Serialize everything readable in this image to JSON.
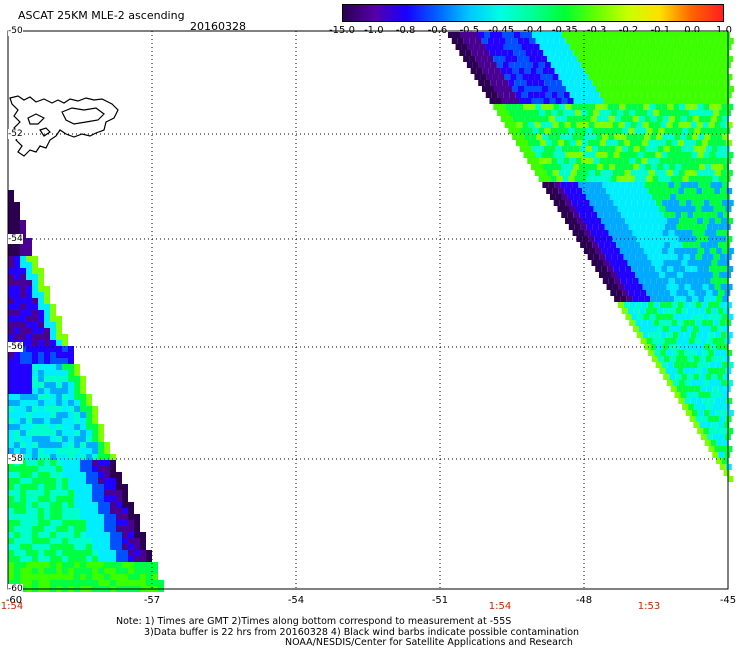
{
  "header": {
    "title": "ASCAT 25KM MLE-2 ascending",
    "date": "20160328"
  },
  "colorbar": {
    "labels": [
      "-15.0",
      "-1.0",
      "-0.8",
      "-0.6",
      "-0.5",
      "-0.45",
      "-0.4",
      "-0.35",
      "-0.3",
      "-0.2",
      "-0.1",
      "0.0",
      "1.0"
    ],
    "colors": [
      "#2a0050",
      "#5500a8",
      "#1a00ff",
      "#0064ff",
      "#00c8ff",
      "#00ffe0",
      "#00ff96",
      "#00ff32",
      "#64ff00",
      "#c8ff00",
      "#ffe000",
      "#ff6400",
      "#ff1e1e"
    ]
  },
  "axes": {
    "lon_labels": [
      "-60",
      "-57",
      "-54",
      "-51",
      "-48",
      "-45"
    ],
    "lat_labels": [
      "-50",
      "-52",
      "-54",
      "-56",
      "-58",
      "-60"
    ],
    "time_labels": [
      "1:54",
      "1:54",
      "1:53"
    ]
  },
  "notes": {
    "line1": "Note: 1) Times are GMT 2)Times along bottom correspond to measurement at -55S",
    "line2": "3)Data buffer is 22 hrs from 20160328 4) Black wind barbs indicate possible contamination",
    "line3": "NOAA/NESDIS/Center for Satellite Applications and Research"
  }
}
